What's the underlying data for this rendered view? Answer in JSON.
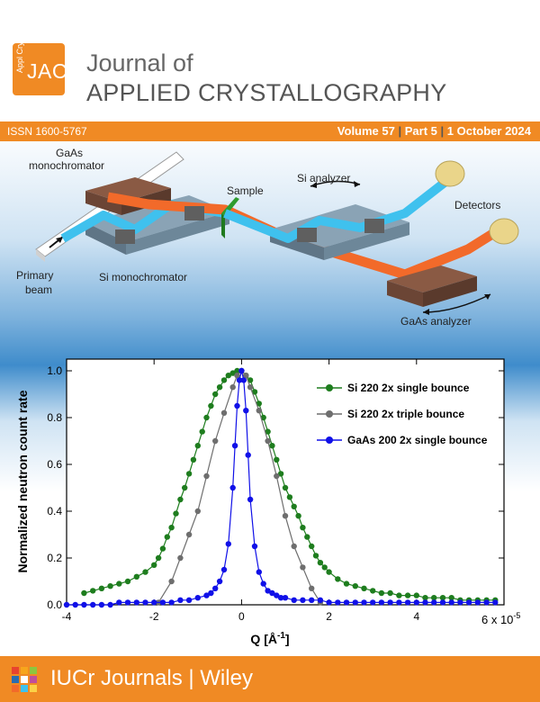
{
  "header": {
    "logo_small": "Appl Cryst",
    "logo_big": "JAC",
    "title_line1": "Journal of",
    "title_line2": "APPLIED CRYSTALLOGRAPHY"
  },
  "infobar": {
    "issn": "ISSN 1600-5767",
    "volume": "Volume 57",
    "part": "Part 5",
    "date": "1 October 2024",
    "separator": "|"
  },
  "diagram": {
    "labels": {
      "gaas_mono": "GaAs",
      "gaas_mono2": "monochromator",
      "sample": "Sample",
      "si_analyzer": "Si analyzer",
      "detectors": "Detectors",
      "primary1": "Primary",
      "primary2": "beam",
      "si_mono": "Si  monochromator",
      "gaas_analyzer": "GaAs analyzer"
    },
    "colors": {
      "si_beam": "#3fc1ee",
      "gaas_beam": "#f26a2a",
      "crystal": "#5f5f5f",
      "detector": "#ead58a"
    }
  },
  "chart_data": {
    "type": "scatter",
    "xlabel": "Q [Å",
    "xlabel_sup": "-1",
    "xlabel_end": "]",
    "ylabel": "Normalized neutron count rate",
    "xlim": [
      -4,
      6
    ],
    "ylim": [
      0,
      1.05
    ],
    "x_multiplier": "6 x 10",
    "x_multiplier_sup": "-5",
    "xticks": [
      "-4",
      "-2",
      "0",
      "2",
      "4"
    ],
    "yticks": [
      "0.0",
      "0.2",
      "0.4",
      "0.6",
      "0.8",
      "1.0"
    ],
    "legend_position": "top-right",
    "series": [
      {
        "name": "Si 220 2x single bounce",
        "color": "#1e7d1e",
        "x": [
          -3.6,
          -3.4,
          -3.2,
          -3.0,
          -2.8,
          -2.6,
          -2.4,
          -2.2,
          -2.0,
          -1.9,
          -1.8,
          -1.7,
          -1.6,
          -1.5,
          -1.4,
          -1.3,
          -1.2,
          -1.1,
          -1.0,
          -0.9,
          -0.8,
          -0.7,
          -0.6,
          -0.5,
          -0.4,
          -0.3,
          -0.2,
          -0.1,
          0.0,
          0.1,
          0.2,
          0.3,
          0.4,
          0.5,
          0.6,
          0.7,
          0.8,
          0.9,
          1.0,
          1.1,
          1.2,
          1.3,
          1.4,
          1.5,
          1.6,
          1.7,
          1.8,
          1.9,
          2.0,
          2.2,
          2.4,
          2.6,
          2.8,
          3.0,
          3.2,
          3.4,
          3.6,
          3.8,
          4.0,
          4.2,
          4.4,
          4.6,
          4.8,
          5.0,
          5.2,
          5.4,
          5.6,
          5.8
        ],
        "y": [
          0.05,
          0.06,
          0.07,
          0.08,
          0.09,
          0.1,
          0.12,
          0.14,
          0.17,
          0.2,
          0.24,
          0.29,
          0.33,
          0.39,
          0.45,
          0.5,
          0.56,
          0.62,
          0.68,
          0.74,
          0.8,
          0.85,
          0.9,
          0.93,
          0.96,
          0.98,
          0.99,
          1.0,
          1.0,
          0.98,
          0.96,
          0.91,
          0.86,
          0.8,
          0.74,
          0.68,
          0.62,
          0.56,
          0.5,
          0.46,
          0.42,
          0.38,
          0.33,
          0.29,
          0.25,
          0.21,
          0.18,
          0.16,
          0.14,
          0.11,
          0.09,
          0.08,
          0.07,
          0.06,
          0.05,
          0.05,
          0.04,
          0.04,
          0.04,
          0.03,
          0.03,
          0.03,
          0.03,
          0.02,
          0.02,
          0.02,
          0.02,
          0.02
        ]
      },
      {
        "name": "Si 220 2x triple bounce",
        "color": "#6e6e6e",
        "x": [
          -1.9,
          -1.6,
          -1.4,
          -1.2,
          -1.0,
          -0.8,
          -0.6,
          -0.4,
          -0.2,
          -0.1,
          0.0,
          0.1,
          0.2,
          0.4,
          0.6,
          0.8,
          1.0,
          1.2,
          1.4,
          1.6,
          1.8
        ],
        "y": [
          0.01,
          0.1,
          0.2,
          0.3,
          0.4,
          0.55,
          0.7,
          0.82,
          0.93,
          0.98,
          1.0,
          0.98,
          0.93,
          0.83,
          0.7,
          0.55,
          0.38,
          0.25,
          0.16,
          0.07,
          0.01
        ]
      },
      {
        "name": "GaAs 200 2x single bounce",
        "color": "#1010e8",
        "x": [
          -4.0,
          -3.8,
          -3.6,
          -3.4,
          -3.2,
          -3.0,
          -2.8,
          -2.6,
          -2.4,
          -2.2,
          -2.0,
          -1.8,
          -1.6,
          -1.4,
          -1.2,
          -1.0,
          -0.8,
          -0.7,
          -0.6,
          -0.5,
          -0.4,
          -0.3,
          -0.2,
          -0.15,
          -0.1,
          -0.05,
          0.0,
          0.05,
          0.1,
          0.15,
          0.2,
          0.3,
          0.4,
          0.5,
          0.6,
          0.7,
          0.8,
          0.9,
          1.0,
          1.2,
          1.4,
          1.6,
          1.8,
          2.0,
          2.2,
          2.4,
          2.6,
          2.8,
          3.0,
          3.2,
          3.4,
          3.6,
          3.8,
          4.0,
          4.2,
          4.4,
          4.6,
          4.8,
          5.0,
          5.2,
          5.4,
          5.6,
          5.8
        ],
        "y": [
          0.0,
          0.0,
          0.0,
          0.0,
          0.0,
          0.0,
          0.01,
          0.01,
          0.01,
          0.01,
          0.01,
          0.01,
          0.01,
          0.02,
          0.02,
          0.03,
          0.04,
          0.05,
          0.07,
          0.1,
          0.15,
          0.26,
          0.5,
          0.68,
          0.85,
          0.96,
          1.0,
          0.96,
          0.83,
          0.64,
          0.45,
          0.25,
          0.14,
          0.09,
          0.06,
          0.05,
          0.04,
          0.03,
          0.03,
          0.02,
          0.02,
          0.02,
          0.02,
          0.01,
          0.01,
          0.01,
          0.01,
          0.01,
          0.01,
          0.01,
          0.01,
          0.01,
          0.01,
          0.01,
          0.01,
          0.01,
          0.01,
          0.01,
          0.01,
          0.01,
          0.01,
          0.01,
          0.01
        ]
      }
    ]
  },
  "footer": {
    "text": "IUCr Journals | Wiley",
    "logo_colors": [
      "#e8432e",
      "#f7a51c",
      "#8dc63f",
      "#2b6cb0",
      "#ffffff",
      "#c04e9b",
      "#f26a2a",
      "#3fc1ee",
      "#fbd247"
    ]
  }
}
